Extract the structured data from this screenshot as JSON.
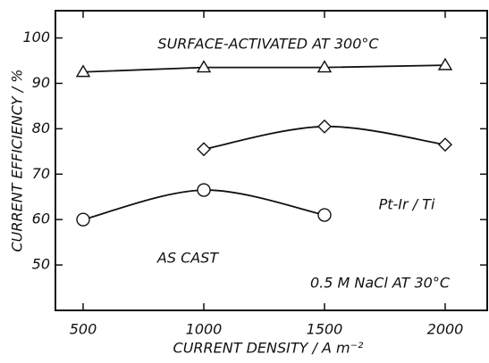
{
  "chart_data": {
    "type": "line",
    "x_label": "CURRENT DENSITY / A m⁻²",
    "y_label": "CURRENT EFFICIENCY / %",
    "categories": [
      "500",
      "1000",
      "1500",
      "2000"
    ],
    "series": [
      {
        "name": "SURFACE-ACTIVATED AT 300°C",
        "color": "#111111",
        "marker": "triangle",
        "values": [
          92.5,
          93.5,
          93.5,
          94
        ]
      },
      {
        "name": "Pt-Ir / Ti",
        "color": "#111111",
        "marker": "diamond",
        "values": [
          null,
          75.5,
          80.5,
          76.5
        ]
      },
      {
        "name": "AS CAST",
        "color": "#111111",
        "marker": "circle",
        "values": [
          60,
          66.5,
          61,
          null
        ]
      }
    ],
    "annotations": [
      "0.5 M NaCl AT 30°C"
    ],
    "ylim": [
      40,
      106
    ],
    "yticks": [
      50,
      60,
      70,
      80,
      90,
      100
    ],
    "grid": false
  }
}
